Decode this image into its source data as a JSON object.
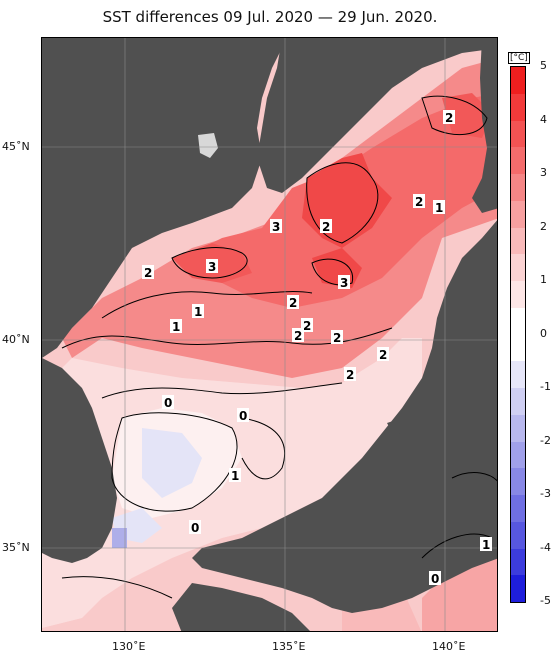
{
  "title": "SST differences 09 Jul. 2020 — 29 Jun. 2020.",
  "unit": "[°C]",
  "lat_labels": [
    "45˚N",
    "40˚N",
    "35˚N"
  ],
  "lon_labels": [
    "130˚E",
    "135˚E",
    "140˚E"
  ],
  "colorbar": {
    "ticks": [
      "5",
      "4",
      "3",
      "2",
      "1",
      "0",
      "-1",
      "-2",
      "-3",
      "-4",
      "-5"
    ],
    "colors": [
      "#ef1f1f",
      "#f23a3a",
      "#f35353",
      "#f46c6c",
      "#f58686",
      "#f7a0a0",
      "#f9baba",
      "#fbd3d3",
      "#fde6e6",
      "#ffffff",
      "#ffffff",
      "#e6e6f9",
      "#cfcff3",
      "#b8b8ee",
      "#a0a0ea",
      "#8888e6",
      "#6f6fe3",
      "#5757e0",
      "#3c3cdd",
      "#1e1edb"
    ]
  },
  "colors": {
    "land": "#505050",
    "frame": "#000000",
    "grid": "#8a8a8a"
  },
  "contour_labels": [
    "2",
    "3",
    "2",
    "1",
    "3",
    "2",
    "2",
    "3",
    "2",
    "1",
    "2",
    "2",
    "2",
    "2",
    "1",
    "2",
    "0",
    "0",
    "1",
    "0",
    "1",
    "0"
  ]
}
